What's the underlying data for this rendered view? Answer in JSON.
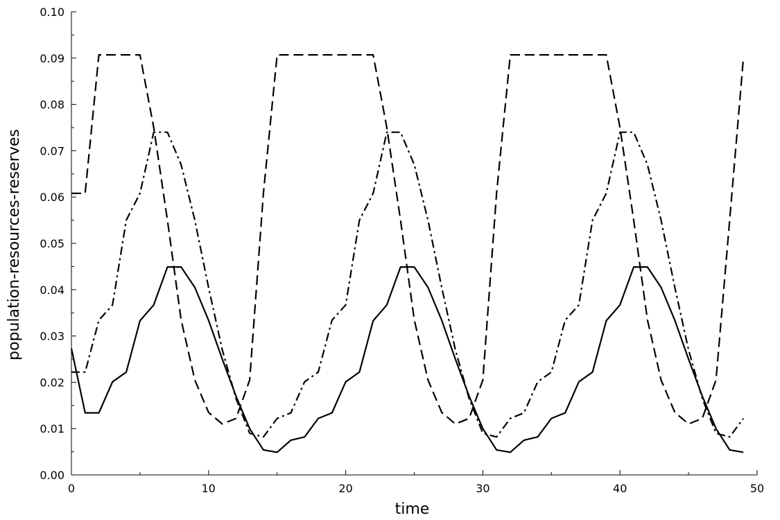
{
  "chart_data": {
    "type": "line",
    "title": "",
    "xlabel": "time",
    "ylabel": "population-resources-reserves",
    "xlim": [
      0,
      50
    ],
    "ylim": [
      0,
      0.1
    ],
    "x_ticks": [
      "0",
      "10",
      "20",
      "30",
      "40",
      "50"
    ],
    "y_ticks": [
      "0.00",
      "0.01",
      "0.02",
      "0.03",
      "0.04",
      "0.05",
      "0.06",
      "0.07",
      "0.08",
      "0.09",
      "0.10"
    ],
    "grid": false,
    "legend": "none",
    "line_color": "#000000",
    "series": [
      {
        "style": "solid",
        "x": [
          0,
          1,
          2,
          3,
          4,
          5,
          6,
          7,
          8,
          9,
          10,
          11,
          12,
          13,
          14,
          15,
          16,
          17,
          18,
          19,
          20,
          21,
          22,
          23,
          24,
          25,
          26,
          27,
          28,
          29,
          30,
          31,
          32,
          33,
          34,
          35,
          36,
          37,
          38,
          39,
          40,
          41,
          42,
          43,
          44,
          45,
          46,
          47,
          48,
          49
        ],
        "values": [
          0.0273,
          0.0134,
          0.0134,
          0.0201,
          0.0222,
          0.0333,
          0.0367,
          0.0449,
          0.0449,
          0.0405,
          0.0334,
          0.025,
          0.017,
          0.01,
          0.0054,
          0.0049,
          0.0075,
          0.0082,
          0.0122,
          0.0134,
          0.0201,
          0.0222,
          0.0333,
          0.0367,
          0.0449,
          0.0449,
          0.0405,
          0.0334,
          0.025,
          0.017,
          0.01,
          0.0054,
          0.0049,
          0.0075,
          0.0082,
          0.0122,
          0.0134,
          0.0201,
          0.0222,
          0.0333,
          0.0367,
          0.0449,
          0.0449,
          0.0405,
          0.0334,
          0.025,
          0.017,
          0.01,
          0.0054,
          0.0049
        ]
      },
      {
        "style": "dashed",
        "x": [
          0,
          1,
          2,
          3,
          4,
          5,
          6,
          7,
          8,
          9,
          10,
          11,
          12,
          13,
          14,
          15,
          16,
          17,
          18,
          19,
          20,
          21,
          22,
          23,
          24,
          25,
          26,
          27,
          28,
          29,
          30,
          31,
          32,
          33,
          34,
          35,
          36,
          37,
          38,
          39,
          40,
          41,
          42,
          43,
          44,
          45,
          46,
          47,
          48,
          49
        ],
        "values": [
          0.0608,
          0.0608,
          0.0907,
          0.0907,
          0.0907,
          0.0907,
          0.075,
          0.055,
          0.0335,
          0.0205,
          0.0135,
          0.011,
          0.0122,
          0.0205,
          0.0608,
          0.0907,
          0.0907,
          0.0907,
          0.0907,
          0.0907,
          0.0907,
          0.0907,
          0.0907,
          0.075,
          0.055,
          0.0335,
          0.0205,
          0.0135,
          0.011,
          0.0122,
          0.0205,
          0.0608,
          0.0907,
          0.0907,
          0.0907,
          0.0907,
          0.0907,
          0.0907,
          0.0907,
          0.0907,
          0.075,
          0.055,
          0.0335,
          0.0205,
          0.0135,
          0.011,
          0.0122,
          0.0205,
          0.055,
          0.09
        ]
      },
      {
        "style": "dash-dot",
        "x": [
          0,
          1,
          2,
          3,
          4,
          5,
          6,
          7,
          8,
          9,
          10,
          11,
          12,
          13,
          14,
          15,
          16,
          17,
          18,
          19,
          20,
          21,
          22,
          23,
          24,
          25,
          26,
          27,
          28,
          29,
          30,
          31,
          32,
          33,
          34,
          35,
          36,
          37,
          38,
          39,
          40,
          41,
          42,
          43,
          44,
          45,
          46,
          47,
          48,
          49
        ],
        "values": [
          0.0222,
          0.0222,
          0.0334,
          0.0367,
          0.055,
          0.0608,
          0.074,
          0.074,
          0.067,
          0.055,
          0.0405,
          0.027,
          0.0165,
          0.009,
          0.0082,
          0.0122,
          0.0134,
          0.0201,
          0.0222,
          0.0334,
          0.0367,
          0.055,
          0.0608,
          0.074,
          0.074,
          0.067,
          0.055,
          0.0405,
          0.027,
          0.0165,
          0.009,
          0.0082,
          0.0122,
          0.0134,
          0.0201,
          0.0222,
          0.0334,
          0.0367,
          0.055,
          0.0608,
          0.074,
          0.074,
          0.067,
          0.055,
          0.0405,
          0.027,
          0.0165,
          0.009,
          0.0082,
          0.0122
        ]
      }
    ]
  }
}
